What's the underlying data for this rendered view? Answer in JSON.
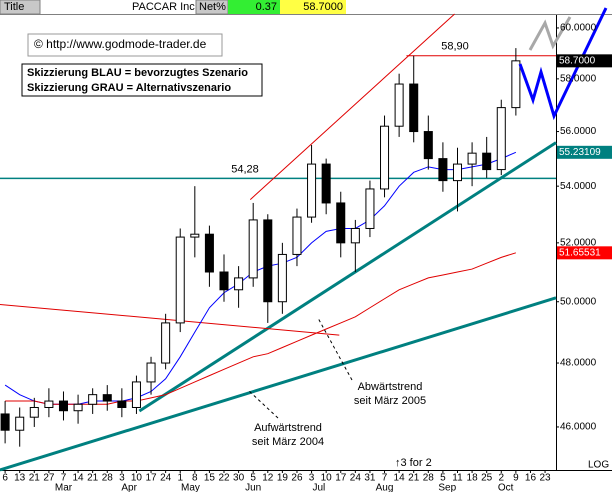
{
  "header": {
    "label": "Title",
    "name": "PACCAR Inc",
    "net_label": "Net%",
    "net": "0.37",
    "last": "58.7000"
  },
  "notes": {
    "copyright": "© http://www.godmode-trader.de",
    "legend": [
      "Skizzierung BLAU = bevorzugtes Szenario",
      "Skizzierung GRAU = Alternativszenario"
    ],
    "annotations": [
      [
        "Abwärtstrend",
        "seit März 2005"
      ],
      [
        "Aufwärtstrend",
        "seit März 2004"
      ]
    ],
    "split": "↑3 for 2",
    "scale": "LOG"
  },
  "chart_data": {
    "type": "candlestick",
    "log_y": true,
    "x": [
      0,
      1,
      2,
      3,
      4,
      5,
      6,
      7,
      8,
      9,
      10,
      11,
      12,
      13,
      14,
      15,
      16,
      17,
      18,
      19,
      20,
      21,
      22,
      23,
      24,
      25,
      26,
      27,
      28,
      29,
      30,
      31,
      32,
      33,
      34,
      35
    ],
    "open": [
      46.4,
      45.9,
      46.3,
      46.6,
      46.8,
      46.5,
      46.7,
      47.0,
      46.8,
      46.6,
      47.4,
      48.0,
      49.3,
      52.2,
      52.3,
      51.0,
      50.4,
      50.8,
      52.8,
      50.0,
      51.6,
      52.9,
      54.8,
      53.4,
      52.0,
      52.5,
      53.9,
      56.2,
      57.8,
      56.0,
      55.0,
      54.2,
      54.8,
      55.2,
      54.6,
      56.9
    ],
    "high": [
      46.8,
      46.6,
      46.9,
      47.2,
      47.1,
      47.0,
      47.2,
      47.3,
      47.2,
      47.6,
      48.2,
      49.6,
      52.5,
      54.0,
      52.6,
      51.6,
      51.2,
      53.4,
      53.0,
      52.0,
      53.2,
      55.5,
      55.0,
      53.8,
      52.8,
      54.2,
      56.6,
      58.2,
      58.9,
      56.6,
      55.6,
      55.4,
      55.6,
      55.8,
      57.2,
      59.2
    ],
    "low": [
      45.5,
      45.4,
      46.0,
      46.3,
      46.2,
      46.1,
      46.4,
      46.5,
      46.3,
      46.4,
      47.0,
      47.8,
      49.0,
      51.5,
      50.5,
      50.0,
      49.8,
      50.5,
      49.3,
      49.6,
      51.2,
      52.7,
      53.0,
      51.5,
      51.0,
      52.2,
      53.6,
      55.8,
      55.6,
      54.6,
      53.8,
      53.1,
      54.0,
      54.3,
      54.4,
      56.6
    ],
    "close": [
      45.9,
      46.3,
      46.6,
      46.8,
      46.5,
      46.7,
      47.0,
      46.8,
      46.6,
      47.4,
      48.0,
      49.3,
      52.2,
      52.3,
      51.0,
      50.4,
      50.8,
      52.8,
      50.0,
      51.6,
      52.9,
      54.8,
      53.4,
      52.0,
      52.5,
      53.9,
      56.2,
      57.8,
      56.0,
      55.0,
      54.2,
      54.8,
      55.2,
      54.6,
      56.9,
      58.7
    ],
    "up_color": "#ffffff",
    "down_color": "#000000",
    "lines": [
      {
        "color": "#0000ff",
        "values": [
          47.3,
          47.0,
          46.8,
          46.7,
          46.7,
          46.7,
          46.8,
          46.8,
          46.8,
          46.9,
          47.1,
          47.5,
          48.2,
          49.0,
          49.8,
          50.3,
          50.6,
          51.0,
          51.2,
          51.3,
          51.5,
          52.0,
          52.4,
          52.5,
          52.5,
          52.8,
          53.3,
          54.0,
          54.5,
          54.7,
          54.6,
          54.6,
          54.7,
          54.8,
          55.0,
          55.23109
        ]
      },
      {
        "color": "#e00000",
        "values": [
          46.8,
          46.8,
          46.8,
          46.7,
          46.7,
          46.7,
          46.7,
          46.7,
          46.8,
          46.8,
          46.9,
          47.0,
          47.2,
          47.4,
          47.6,
          47.8,
          48.0,
          48.2,
          48.3,
          48.5,
          48.7,
          48.9,
          49.1,
          49.3,
          49.5,
          49.8,
          50.1,
          50.4,
          50.6,
          50.8,
          50.9,
          51.0,
          51.1,
          51.3,
          51.5,
          51.65531
        ]
      }
    ],
    "trendlines": [
      {
        "color": "#008080",
        "x": [
          -0.35,
          37.75
        ],
        "y": [
          44.7,
          50.13
        ]
      },
      {
        "color": "#008080",
        "x": [
          9.2,
          37.75
        ],
        "y": [
          46.49,
          55.59
        ]
      },
      {
        "color": "#e00000",
        "x": [
          16.8,
          30.8
        ],
        "y": [
          53.52,
          60.56
        ]
      },
      {
        "color": "#e00000",
        "x": [
          -0.35,
          22.9
        ],
        "y": [
          49.91,
          48.9
        ]
      }
    ],
    "levels": [
      {
        "value": 54.28,
        "label": "54,28",
        "color": "#008080",
        "x": [
          -0.35,
          37.75
        ]
      },
      {
        "value": 58.9,
        "label": "58,90",
        "color": "#e00000",
        "x": [
          27.5,
          37.75
        ]
      }
    ],
    "price_labels": [
      {
        "value": 58.7,
        "label": "58.7000",
        "color": "#000000"
      },
      {
        "value": 55.23109,
        "label": "55.23109",
        "color": "#008080"
      },
      {
        "value": 51.65531,
        "label": "51.65531",
        "color": "#ff0000"
      }
    ],
    "xlim": [
      -0.35,
      37.75
    ],
    "ylim": [
      44.7,
      60.56
    ],
    "yticks": [
      {
        "value": 46,
        "label": "46.0000"
      },
      {
        "value": 48,
        "label": "48.0000"
      },
      {
        "value": 50,
        "label": "50.0000"
      },
      {
        "value": 52,
        "label": "52.0000"
      },
      {
        "value": 54,
        "label": "54.0000"
      },
      {
        "value": 56,
        "label": "56.0000"
      },
      {
        "value": 58,
        "label": "58.0000"
      },
      {
        "value": 60,
        "label": "60.0000"
      }
    ],
    "xticks": [
      {
        "value": 0,
        "label": "6"
      },
      {
        "value": 1,
        "label": "13"
      },
      {
        "value": 2,
        "label": "21"
      },
      {
        "value": 3,
        "label": "27"
      },
      {
        "value": 4,
        "label": "7"
      },
      {
        "value": 5,
        "label": "14"
      },
      {
        "value": 6,
        "label": "21"
      },
      {
        "value": 7,
        "label": "28"
      },
      {
        "value": 8,
        "label": "3"
      },
      {
        "value": 9,
        "label": "10"
      },
      {
        "value": 10,
        "label": "17"
      },
      {
        "value": 11,
        "label": "24"
      },
      {
        "value": 12,
        "label": "1"
      },
      {
        "value": 13,
        "label": "8"
      },
      {
        "value": 14,
        "label": "15"
      },
      {
        "value": 15,
        "label": "22"
      },
      {
        "value": 16,
        "label": "30"
      },
      {
        "value": 17,
        "label": "5"
      },
      {
        "value": 18,
        "label": "12"
      },
      {
        "value": 19,
        "label": "19"
      },
      {
        "value": 20,
        "label": "26"
      },
      {
        "value": 21,
        "label": "3"
      },
      {
        "value": 22,
        "label": "10"
      },
      {
        "value": 23,
        "label": "17"
      },
      {
        "value": 24,
        "label": "24"
      },
      {
        "value": 25,
        "label": "31"
      },
      {
        "value": 26,
        "label": "7"
      },
      {
        "value": 27,
        "label": "14"
      },
      {
        "value": 28,
        "label": "21"
      },
      {
        "value": 29,
        "label": "28"
      },
      {
        "value": 30,
        "label": "5"
      },
      {
        "value": 31,
        "label": "11"
      },
      {
        "value": 32,
        "label": "18"
      },
      {
        "value": 33,
        "label": "25"
      },
      {
        "value": 34,
        "label": "2"
      },
      {
        "value": 35,
        "label": "9"
      },
      {
        "value": 36,
        "label": "16"
      },
      {
        "value": 37,
        "label": "23"
      }
    ],
    "month_ticks": [
      {
        "value": 4,
        "label": "Mar"
      },
      {
        "value": 8.5,
        "label": "Apr"
      },
      {
        "value": 12.7,
        "label": "May"
      },
      {
        "value": 17,
        "label": "Jun"
      },
      {
        "value": 21.5,
        "label": "Jul"
      },
      {
        "value": 26,
        "label": "Aug"
      },
      {
        "value": 30.3,
        "label": "Sep"
      },
      {
        "value": 34.3,
        "label": "Oct"
      }
    ]
  }
}
